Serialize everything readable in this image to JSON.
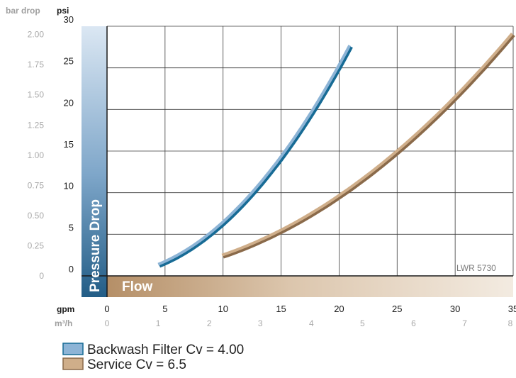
{
  "chart_data": {
    "type": "line",
    "x_axis": {
      "unit_primary": "gpm",
      "unit_secondary": "m³/h",
      "ticks_gpm": [
        "0",
        "5",
        "10",
        "15",
        "20",
        "25",
        "30",
        "35"
      ],
      "ticks_m3h": [
        "0",
        "1",
        "2",
        "3",
        "4",
        "5",
        "6",
        "7",
        "8"
      ],
      "range_gpm": [
        0,
        35
      ],
      "band_label": "Flow"
    },
    "y_axis": {
      "unit_primary": "psi",
      "unit_secondary": "bar drop",
      "ticks_psi": [
        "0",
        "5",
        "10",
        "15",
        "20",
        "25",
        "30"
      ],
      "ticks_bar": [
        "0",
        "0.25",
        "0.50",
        "0.75",
        "1.00",
        "1.25",
        "1.50",
        "1.75",
        "2.00"
      ],
      "range_psi": [
        0,
        30
      ],
      "band_label": "Pressure Drop"
    },
    "grid": true,
    "reference_label": "LWR 5730",
    "series": [
      {
        "name": "Backwash Filter Cv = 4.00",
        "color_outer": "#176b95",
        "color_inner": "#8db4d6",
        "cv": 4.0,
        "gpm_range": [
          4.5,
          21
        ]
      },
      {
        "name": "Service Cv = 6.5",
        "color_outer": "#8a6a4a",
        "color_inner": "#cfae8a",
        "cv": 6.5,
        "gpm_range": [
          10,
          35
        ]
      }
    ],
    "legend_placement": "bottom-left"
  }
}
